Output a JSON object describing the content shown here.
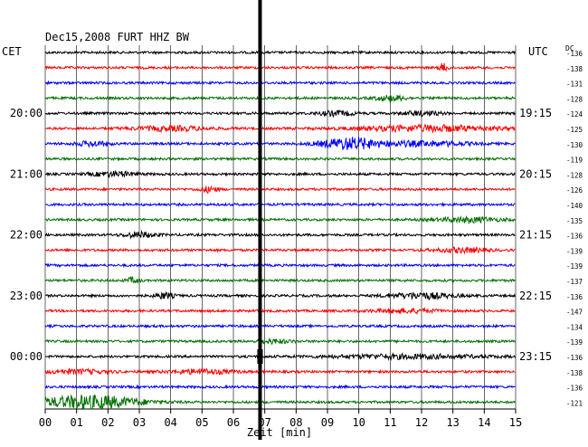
{
  "chart_data": {
    "type": "line",
    "title": "Dec15,2008   FURT HHZ BW",
    "left_timezone": "CET",
    "right_timezone": "UTC",
    "dc_label": "DC",
    "xlabel": "Zeit [min]",
    "xlim": [
      0,
      15
    ],
    "x_ticks": [
      "00",
      "01",
      "02",
      "03",
      "04",
      "05",
      "06",
      "07",
      "08",
      "09",
      "10",
      "11",
      "12",
      "13",
      "14",
      "15"
    ],
    "trace_colors": [
      "#000000",
      "#ff0000",
      "#0000ff",
      "#007000"
    ],
    "left_time_labels": [
      {
        "trace": 4,
        "label": "20:00"
      },
      {
        "trace": 8,
        "label": "21:00"
      },
      {
        "trace": 12,
        "label": "22:00"
      },
      {
        "trace": 16,
        "label": "23:00"
      },
      {
        "trace": 20,
        "label": "00:00"
      }
    ],
    "right_time_labels": [
      {
        "trace": 4,
        "label": "19:15"
      },
      {
        "trace": 8,
        "label": "20:15"
      },
      {
        "trace": 12,
        "label": "21:15"
      },
      {
        "trace": 16,
        "label": "22:15"
      },
      {
        "trace": 20,
        "label": "23:15"
      }
    ],
    "dc_offsets": [
      "-136",
      "-138",
      "-131",
      "-128",
      "-124",
      "-125",
      "-130",
      "-119",
      "-128",
      "-126",
      "-140",
      "-135",
      "-136",
      "-139",
      "-139",
      "-137",
      "-136",
      "-147",
      "-134",
      "-139",
      "-136",
      "-138",
      "-136",
      "-121"
    ],
    "events": [
      {
        "trace": 1,
        "center_min": 12.7,
        "width_min": 0.15,
        "amp": 2.6
      },
      {
        "trace": 3,
        "center_min": 11.0,
        "width_min": 0.5,
        "amp": 1.8
      },
      {
        "trace": 4,
        "center_min": 9.3,
        "width_min": 0.6,
        "amp": 1.5
      },
      {
        "trace": 4,
        "center_min": 12.0,
        "width_min": 0.6,
        "amp": 1.4
      },
      {
        "trace": 5,
        "center_min": 4.0,
        "width_min": 1.2,
        "amp": 1.5
      },
      {
        "trace": 5,
        "center_min": 12.2,
        "width_min": 2.2,
        "amp": 2.0
      },
      {
        "trace": 6,
        "center_min": 1.5,
        "width_min": 0.5,
        "amp": 1.6
      },
      {
        "trace": 6,
        "center_min": 9.7,
        "width_min": 0.9,
        "amp": 4.0
      },
      {
        "trace": 6,
        "center_min": 12.0,
        "width_min": 1.5,
        "amp": 1.6
      },
      {
        "trace": 8,
        "center_min": 2.2,
        "width_min": 0.7,
        "amp": 1.6
      },
      {
        "trace": 9,
        "center_min": 5.2,
        "width_min": 0.3,
        "amp": 1.8
      },
      {
        "trace": 11,
        "center_min": 13.5,
        "width_min": 1.0,
        "amp": 1.6
      },
      {
        "trace": 12,
        "center_min": 3.0,
        "width_min": 0.5,
        "amp": 1.8
      },
      {
        "trace": 13,
        "center_min": 13.3,
        "width_min": 0.8,
        "amp": 1.5
      },
      {
        "trace": 15,
        "center_min": 2.8,
        "width_min": 0.2,
        "amp": 1.8
      },
      {
        "trace": 16,
        "center_min": 3.8,
        "width_min": 0.3,
        "amp": 2.0
      },
      {
        "trace": 16,
        "center_min": 12.0,
        "width_min": 1.0,
        "amp": 2.0
      },
      {
        "trace": 17,
        "center_min": 11.5,
        "width_min": 1.0,
        "amp": 1.3
      },
      {
        "trace": 19,
        "center_min": 7.3,
        "width_min": 0.5,
        "amp": 1.3
      },
      {
        "trace": 20,
        "center_min": 11.5,
        "width_min": 2.5,
        "amp": 1.3
      },
      {
        "trace": 21,
        "center_min": 5.0,
        "width_min": 1.0,
        "amp": 1.5
      },
      {
        "trace": 21,
        "center_min": 1.0,
        "width_min": 1.0,
        "amp": 1.3
      },
      {
        "trace": 23,
        "center_min": 1.4,
        "width_min": 1.6,
        "amp": 4.5
      }
    ],
    "vertical_mark": {
      "minute": 6.85,
      "color": "#000000"
    }
  }
}
